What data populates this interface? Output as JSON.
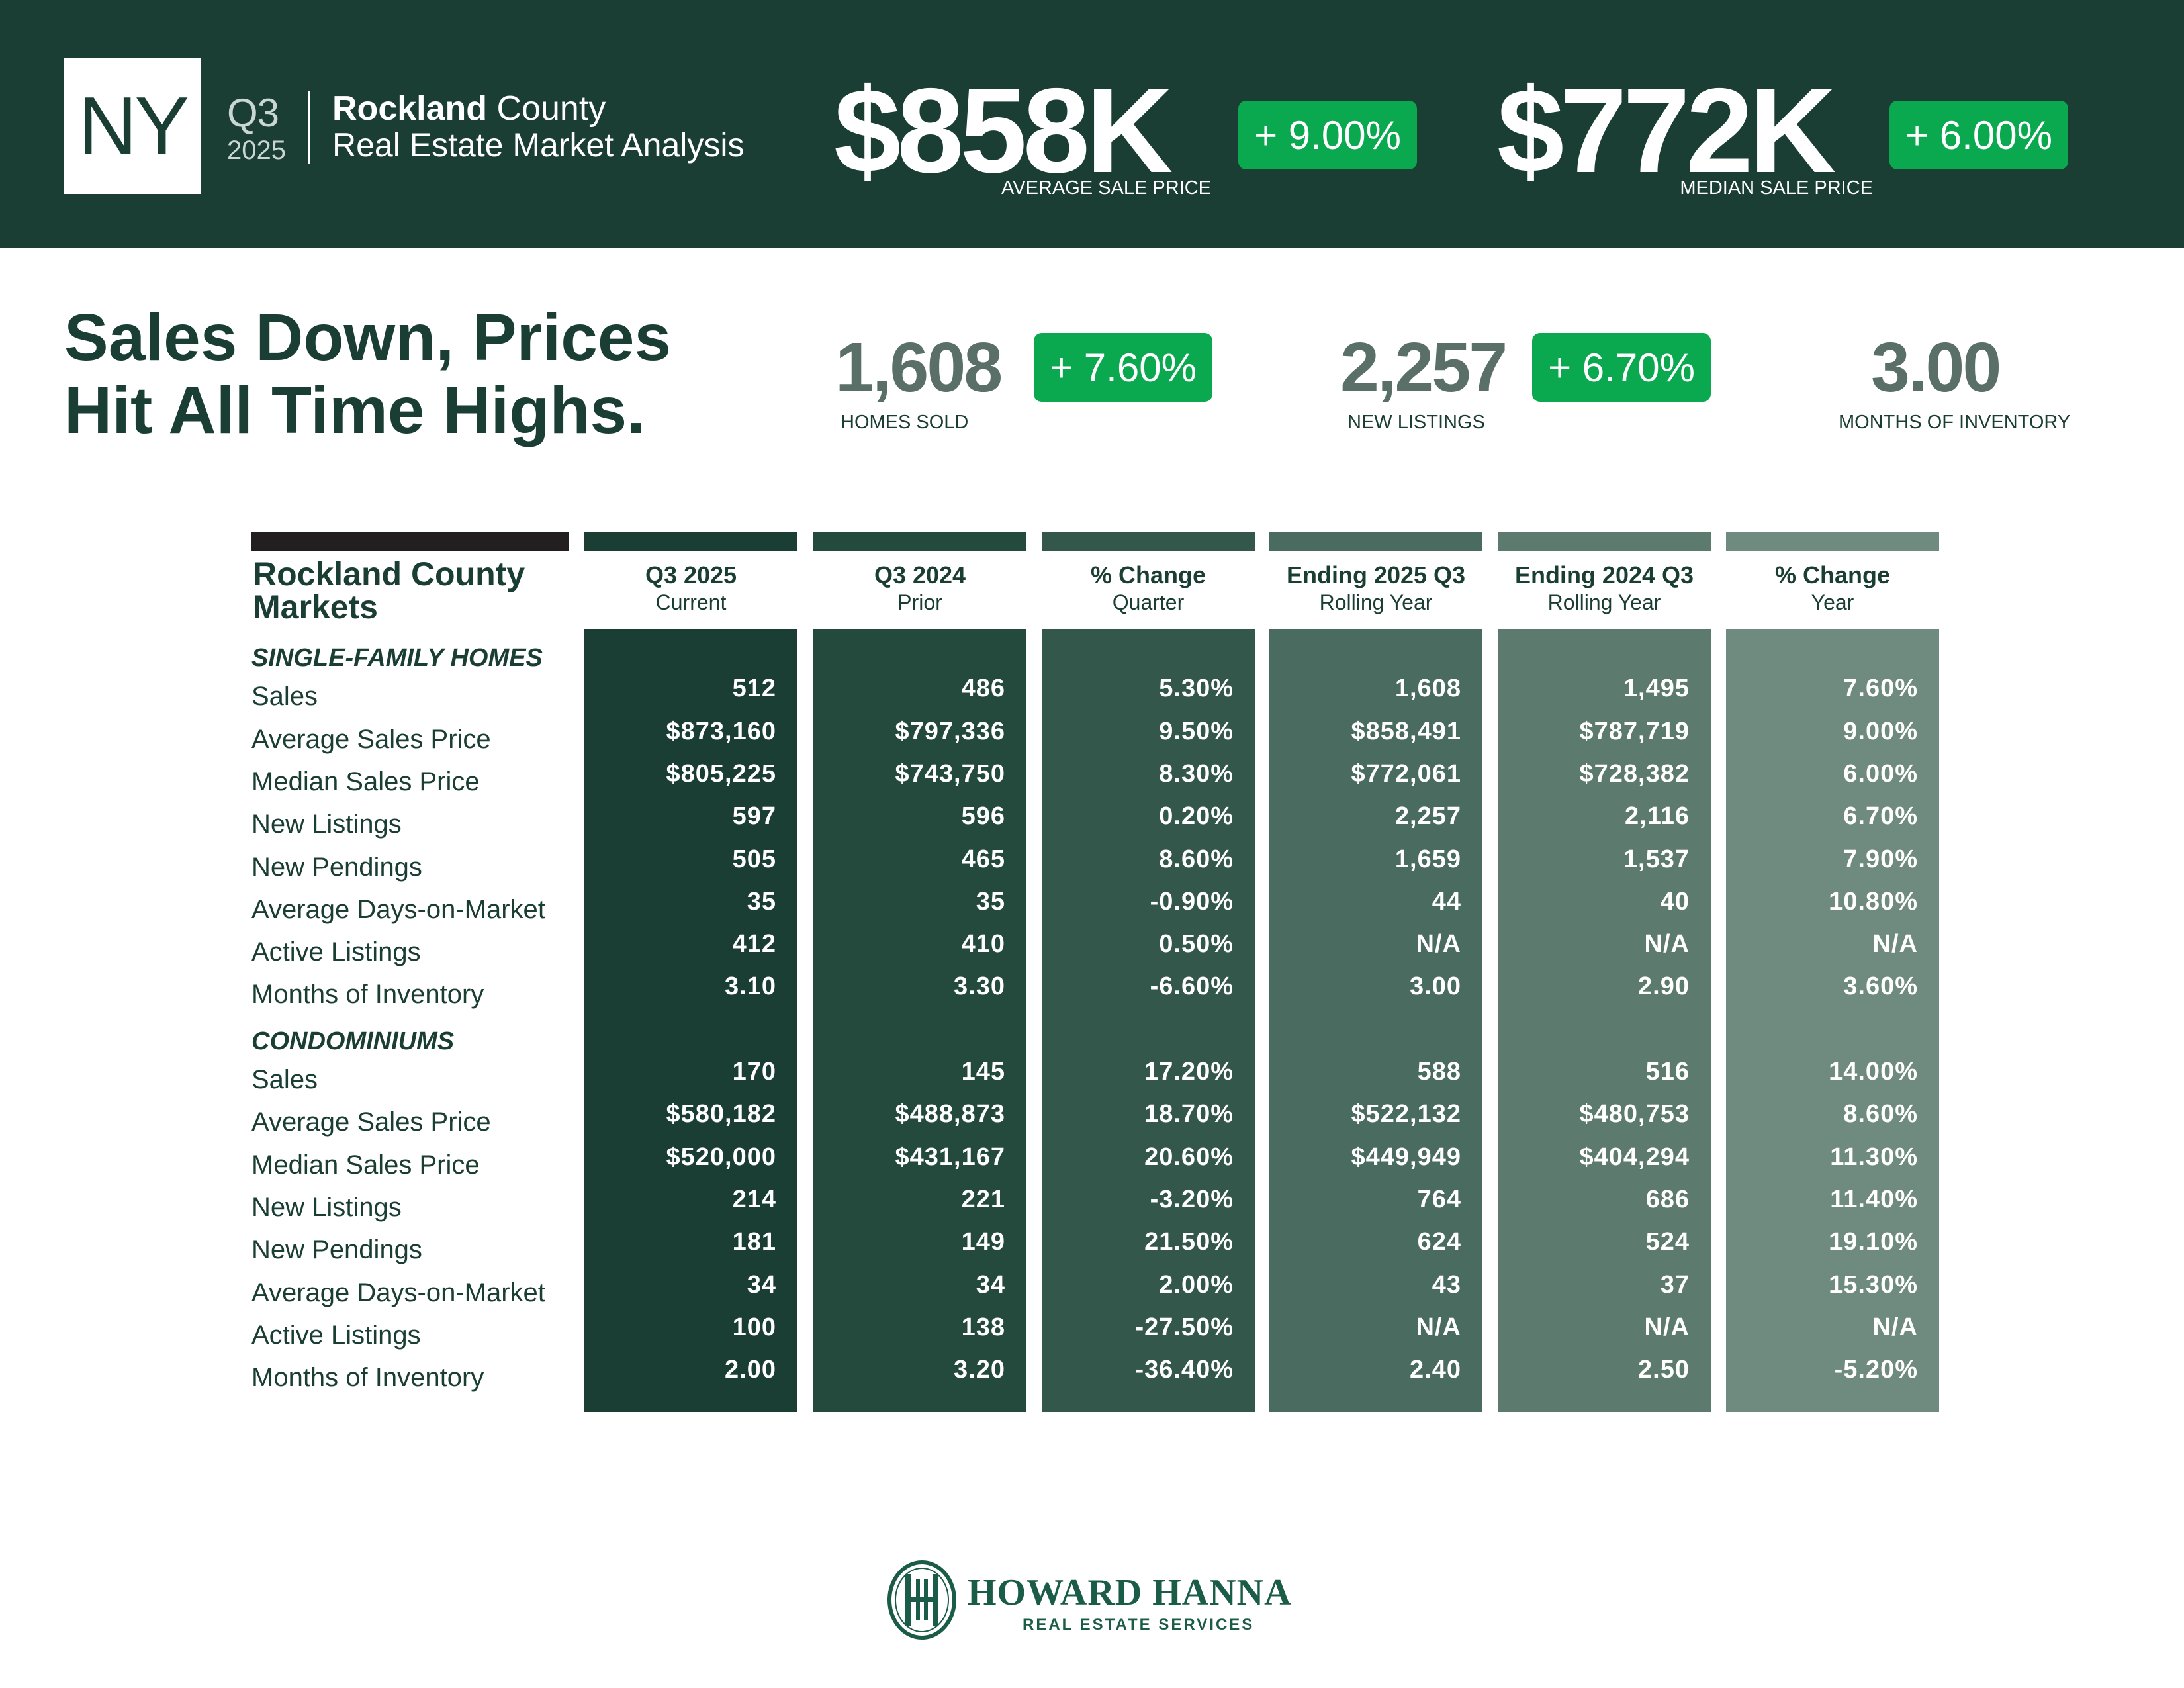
{
  "header": {
    "state": "NY",
    "quarter": "Q3",
    "year": "2025",
    "county_bold": "Rockland",
    "county_rest": " County",
    "subtitle": "Real Estate Market Analysis",
    "avg_price": "$858K",
    "avg_change": "+ 9.00%",
    "avg_label": "AVERAGE SALE PRICE",
    "median_price": "$772K",
    "median_change": "+ 6.00%",
    "median_label": "MEDIAN SALE PRICE"
  },
  "headline": {
    "line1": "Sales Down, Prices",
    "line2": "Hit All Time Highs."
  },
  "kpis": {
    "homes_sold": "1,608",
    "homes_sold_change": "+ 7.60%",
    "homes_sold_label": "HOMES SOLD",
    "new_listings": "2,257",
    "new_listings_change": "+ 6.70%",
    "new_listings_label": "NEW LISTINGS",
    "months_inventory": "3.00",
    "months_inventory_label": "MONTHS OF INVENTORY"
  },
  "table": {
    "title_line1": "Rockland County",
    "title_line2": "Markets",
    "columns": [
      {
        "title": "Q3 2025",
        "sub": "Current",
        "color": "#1a3e33"
      },
      {
        "title": "Q3 2024",
        "sub": "Prior",
        "color": "#244a3e"
      },
      {
        "title": "% Change",
        "sub": "Quarter",
        "color": "#34574b"
      },
      {
        "title": "Ending 2025 Q3",
        "sub": "Rolling Year",
        "color": "#4a6b5f"
      },
      {
        "title": "Ending 2024 Q3",
        "sub": "Rolling Year",
        "color": "#5c7a6e"
      },
      {
        "title": "% Change",
        "sub": "Year",
        "color": "#6f8a7f"
      }
    ],
    "sections": [
      {
        "name": "SINGLE-FAMILY HOMES",
        "rows": [
          {
            "label": "Sales",
            "values": [
              "512",
              "486",
              "5.30%",
              "1,608",
              "1,495",
              "7.60%"
            ]
          },
          {
            "label": "Average Sales Price",
            "values": [
              "$873,160",
              "$797,336",
              "9.50%",
              "$858,491",
              "$787,719",
              "9.00%"
            ]
          },
          {
            "label": "Median Sales Price",
            "values": [
              "$805,225",
              "$743,750",
              "8.30%",
              "$772,061",
              "$728,382",
              "6.00%"
            ]
          },
          {
            "label": "New Listings",
            "values": [
              "597",
              "596",
              "0.20%",
              "2,257",
              "2,116",
              "6.70%"
            ]
          },
          {
            "label": "New Pendings",
            "values": [
              "505",
              "465",
              "8.60%",
              "1,659",
              "1,537",
              "7.90%"
            ]
          },
          {
            "label": "Average Days-on-Market",
            "values": [
              "35",
              "35",
              "-0.90%",
              "44",
              "40",
              "10.80%"
            ]
          },
          {
            "label": "Active Listings",
            "values": [
              "412",
              "410",
              "0.50%",
              "N/A",
              "N/A",
              "N/A"
            ]
          },
          {
            "label": "Months of Inventory",
            "values": [
              "3.10",
              "3.30",
              "-6.60%",
              "3.00",
              "2.90",
              "3.60%"
            ]
          }
        ]
      },
      {
        "name": "CONDOMINIUMS",
        "rows": [
          {
            "label": "Sales",
            "values": [
              "170",
              "145",
              "17.20%",
              "588",
              "516",
              "14.00%"
            ]
          },
          {
            "label": "Average Sales Price",
            "values": [
              "$580,182",
              "$488,873",
              "18.70%",
              "$522,132",
              "$480,753",
              "8.60%"
            ]
          },
          {
            "label": "Median Sales Price",
            "values": [
              "$520,000",
              "$431,167",
              "20.60%",
              "$449,949",
              "$404,294",
              "11.30%"
            ]
          },
          {
            "label": "New Listings",
            "values": [
              "214",
              "221",
              "-3.20%",
              "764",
              "686",
              "11.40%"
            ]
          },
          {
            "label": "New Pendings",
            "values": [
              "181",
              "149",
              "21.50%",
              "624",
              "524",
              "19.10%"
            ]
          },
          {
            "label": "Average Days-on-Market",
            "values": [
              "34",
              "34",
              "2.00%",
              "43",
              "37",
              "15.30%"
            ]
          },
          {
            "label": "Active Listings",
            "values": [
              "100",
              "138",
              "-27.50%",
              "N/A",
              "N/A",
              "N/A"
            ]
          },
          {
            "label": "Months of Inventory",
            "values": [
              "2.00",
              "3.20",
              "-36.40%",
              "2.40",
              "2.50",
              "-5.20%"
            ]
          }
        ]
      }
    ]
  },
  "footer": {
    "brand": "HOWARD HANNA",
    "tagline": "REAL ESTATE SERVICES"
  },
  "colors": {
    "dark_green": "#1a3e33",
    "accent_green": "#0aa94f",
    "kpi_gray": "#5a6f67",
    "title_bar": "#231f20"
  }
}
